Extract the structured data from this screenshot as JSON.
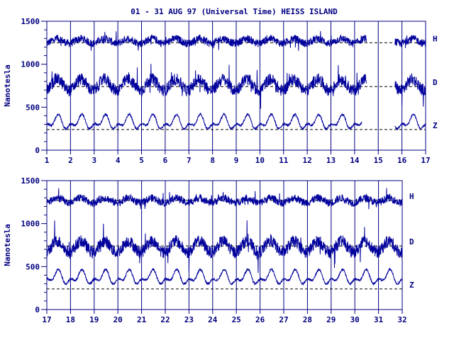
{
  "chart_data": [
    {
      "type": "line",
      "title": "01 - 31 AUG 97 (Universal Time) HEISS ISLAND",
      "ylabel": "Nanotesla",
      "xlabel": "",
      "x_ticks": [
        "1",
        "2",
        "3",
        "4",
        "5",
        "6",
        "7",
        "8",
        "9",
        "10",
        "11",
        "12",
        "13",
        "14",
        "15",
        "16",
        "17"
      ],
      "y_ticks": [
        "0",
        "500",
        "1000",
        "1500"
      ],
      "xlim": [
        1,
        17
      ],
      "ylim": [
        0,
        1500
      ],
      "grid": "vertical lines at each day",
      "series": [
        {
          "name": "H",
          "baseline": 1250,
          "approx_mean": 1270,
          "gap": [
            14.5,
            15.7
          ]
        },
        {
          "name": "D",
          "baseline": 740,
          "approx_mean": 760,
          "gap": [
            14.5,
            15.7
          ]
        },
        {
          "name": "Z",
          "baseline": 240,
          "approx_mean": 320,
          "gap": [
            14.3,
            15.7
          ]
        }
      ]
    },
    {
      "type": "line",
      "title": "",
      "ylabel": "Nanotesla",
      "xlabel": "",
      "x_ticks": [
        "17",
        "18",
        "19",
        "20",
        "21",
        "22",
        "23",
        "24",
        "25",
        "26",
        "27",
        "28",
        "29",
        "30",
        "31",
        "32"
      ],
      "y_ticks": [
        "0",
        "500",
        "1000",
        "1500"
      ],
      "xlim": [
        17,
        32
      ],
      "ylim": [
        0,
        1500
      ],
      "grid": "vertical lines at each day",
      "series": [
        {
          "name": "H",
          "baseline": 1270,
          "approx_mean": 1270
        },
        {
          "name": "D",
          "baseline": 740,
          "approx_mean": 730
        },
        {
          "name": "Z",
          "baseline": 240,
          "approx_mean": 370
        }
      ]
    }
  ],
  "colors": {
    "trace": "#00009c",
    "axis": "#000080"
  }
}
